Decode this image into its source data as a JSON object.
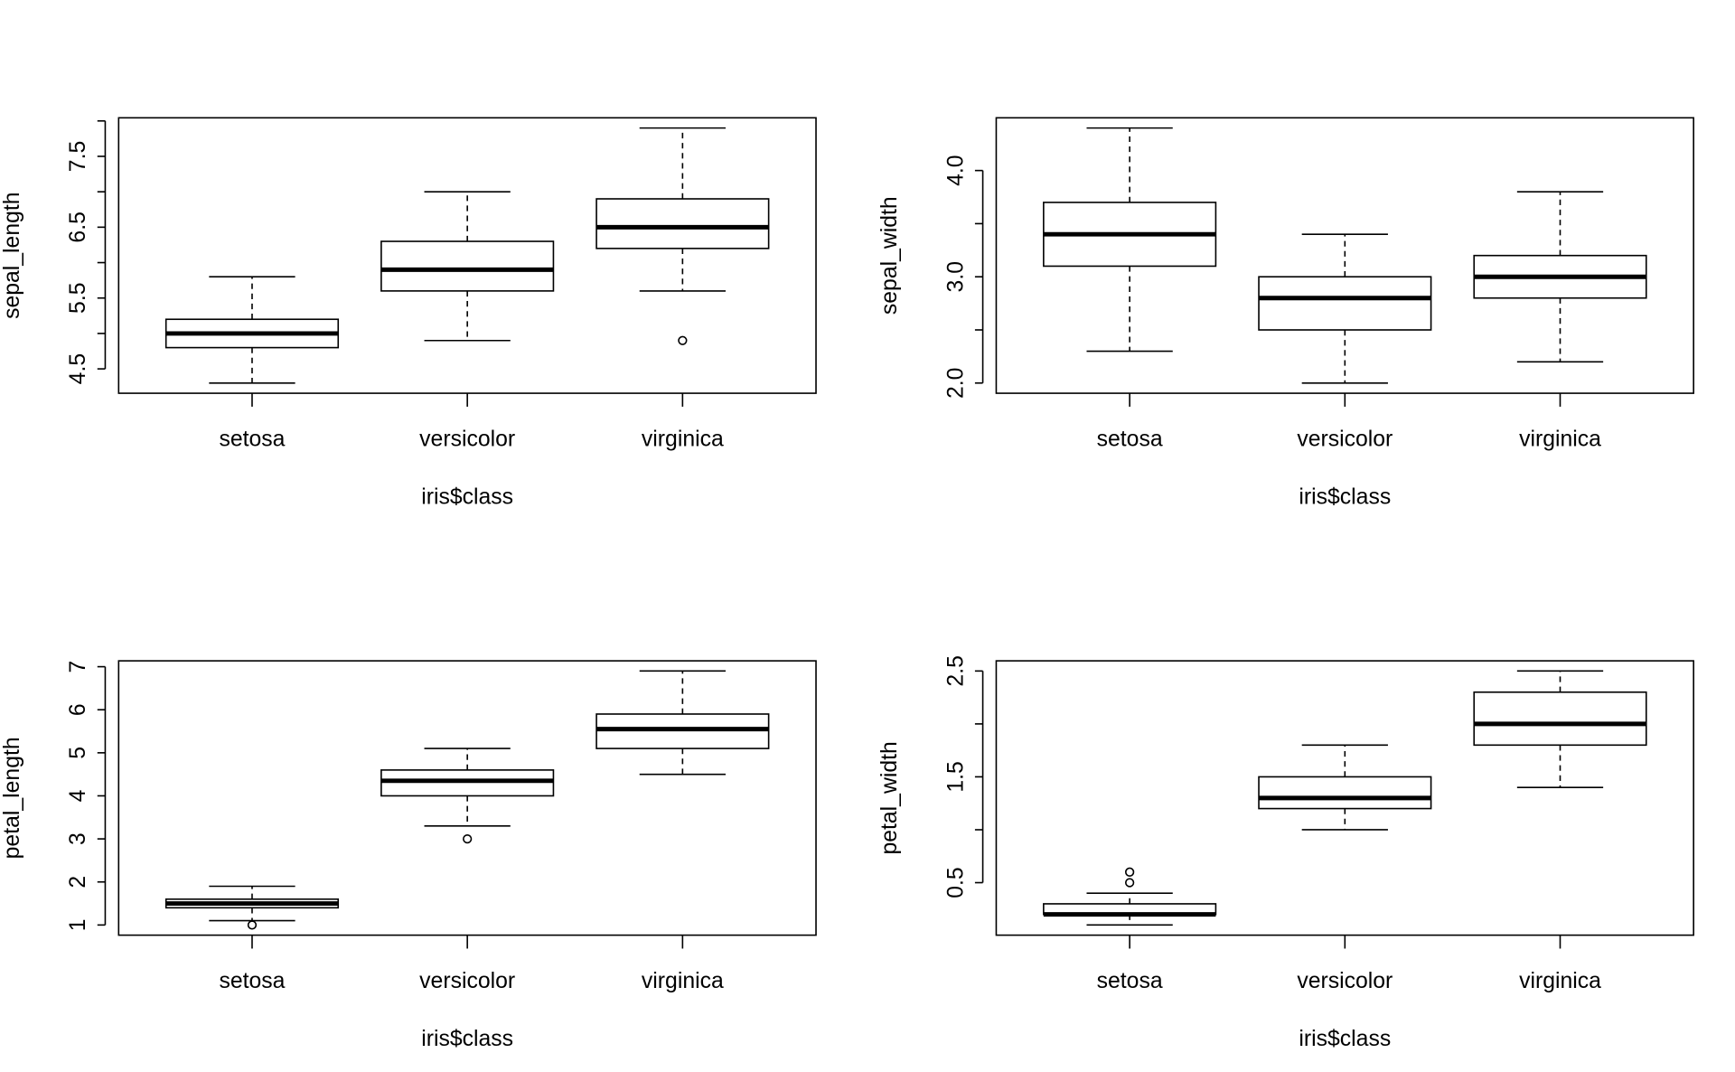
{
  "chart_data": [
    {
      "type": "boxplot",
      "xlabel": "iris$class",
      "ylabel": "sepal_length",
      "categories": [
        "setosa",
        "versicolor",
        "virginica"
      ],
      "ylim": [
        4.156,
        8.044
      ],
      "yticks": [
        4.5,
        5.0,
        5.5,
        6.0,
        6.5,
        7.0,
        7.5,
        8.0
      ],
      "ytick_labels": [
        "4.5",
        "5.5",
        "6.5",
        "7.5"
      ],
      "ytick_label_values": [
        4.5,
        5.5,
        6.5,
        7.5
      ],
      "boxes": [
        {
          "min": 4.3,
          "q1": 4.8,
          "median": 5.0,
          "q3": 5.2,
          "max": 5.8,
          "outliers": []
        },
        {
          "min": 4.9,
          "q1": 5.6,
          "median": 5.9,
          "q3": 6.3,
          "max": 7.0,
          "outliers": []
        },
        {
          "min": 5.6,
          "q1": 6.2,
          "median": 6.5,
          "q3": 6.9,
          "max": 7.9,
          "outliers": [
            4.9
          ]
        }
      ]
    },
    {
      "type": "boxplot",
      "xlabel": "iris$class",
      "ylabel": "sepal_width",
      "categories": [
        "setosa",
        "versicolor",
        "virginica"
      ],
      "ylim": [
        1.904,
        4.496
      ],
      "yticks": [
        2.0,
        2.5,
        3.0,
        3.5,
        4.0
      ],
      "ytick_labels": [
        "2.0",
        "3.0",
        "4.0"
      ],
      "ytick_label_values": [
        2.0,
        3.0,
        4.0
      ],
      "boxes": [
        {
          "min": 2.3,
          "q1": 3.1,
          "median": 3.4,
          "q3": 3.7,
          "max": 4.4,
          "outliers": []
        },
        {
          "min": 2.0,
          "q1": 2.5,
          "median": 2.8,
          "q3": 3.0,
          "max": 3.4,
          "outliers": []
        },
        {
          "min": 2.2,
          "q1": 2.8,
          "median": 3.0,
          "q3": 3.2,
          "max": 3.8,
          "outliers": []
        }
      ]
    },
    {
      "type": "boxplot",
      "xlabel": "iris$class",
      "ylabel": "petal_length",
      "categories": [
        "setosa",
        "versicolor",
        "virginica"
      ],
      "ylim": [
        0.764,
        7.136
      ],
      "yticks": [
        1,
        2,
        3,
        4,
        5,
        6,
        7
      ],
      "ytick_labels": [
        "1",
        "2",
        "3",
        "4",
        "5",
        "6",
        "7"
      ],
      "ytick_label_values": [
        1,
        2,
        3,
        4,
        5,
        6,
        7
      ],
      "boxes": [
        {
          "min": 1.1,
          "q1": 1.4,
          "median": 1.5,
          "q3": 1.6,
          "max": 1.9,
          "outliers": [
            1.0
          ]
        },
        {
          "min": 3.3,
          "q1": 4.0,
          "median": 4.35,
          "q3": 4.6,
          "max": 5.1,
          "outliers": [
            3.0
          ]
        },
        {
          "min": 4.5,
          "q1": 5.1,
          "median": 5.55,
          "q3": 5.9,
          "max": 6.9,
          "outliers": []
        }
      ]
    },
    {
      "type": "boxplot",
      "xlabel": "iris$class",
      "ylabel": "petal_width",
      "categories": [
        "setosa",
        "versicolor",
        "virginica"
      ],
      "ylim": [
        0.004,
        2.596
      ],
      "yticks": [
        0.5,
        1.0,
        1.5,
        2.0,
        2.5
      ],
      "ytick_labels": [
        "0.5",
        "1.5",
        "2.5"
      ],
      "ytick_label_values": [
        0.5,
        1.5,
        2.5
      ],
      "boxes": [
        {
          "min": 0.1,
          "q1": 0.2,
          "median": 0.2,
          "q3": 0.3,
          "max": 0.4,
          "outliers": [
            0.5,
            0.6
          ]
        },
        {
          "min": 1.0,
          "q1": 1.2,
          "median": 1.3,
          "q3": 1.5,
          "max": 1.8,
          "outliers": []
        },
        {
          "min": 1.4,
          "q1": 1.8,
          "median": 2.0,
          "q3": 2.3,
          "max": 2.5,
          "outliers": []
        }
      ]
    }
  ]
}
